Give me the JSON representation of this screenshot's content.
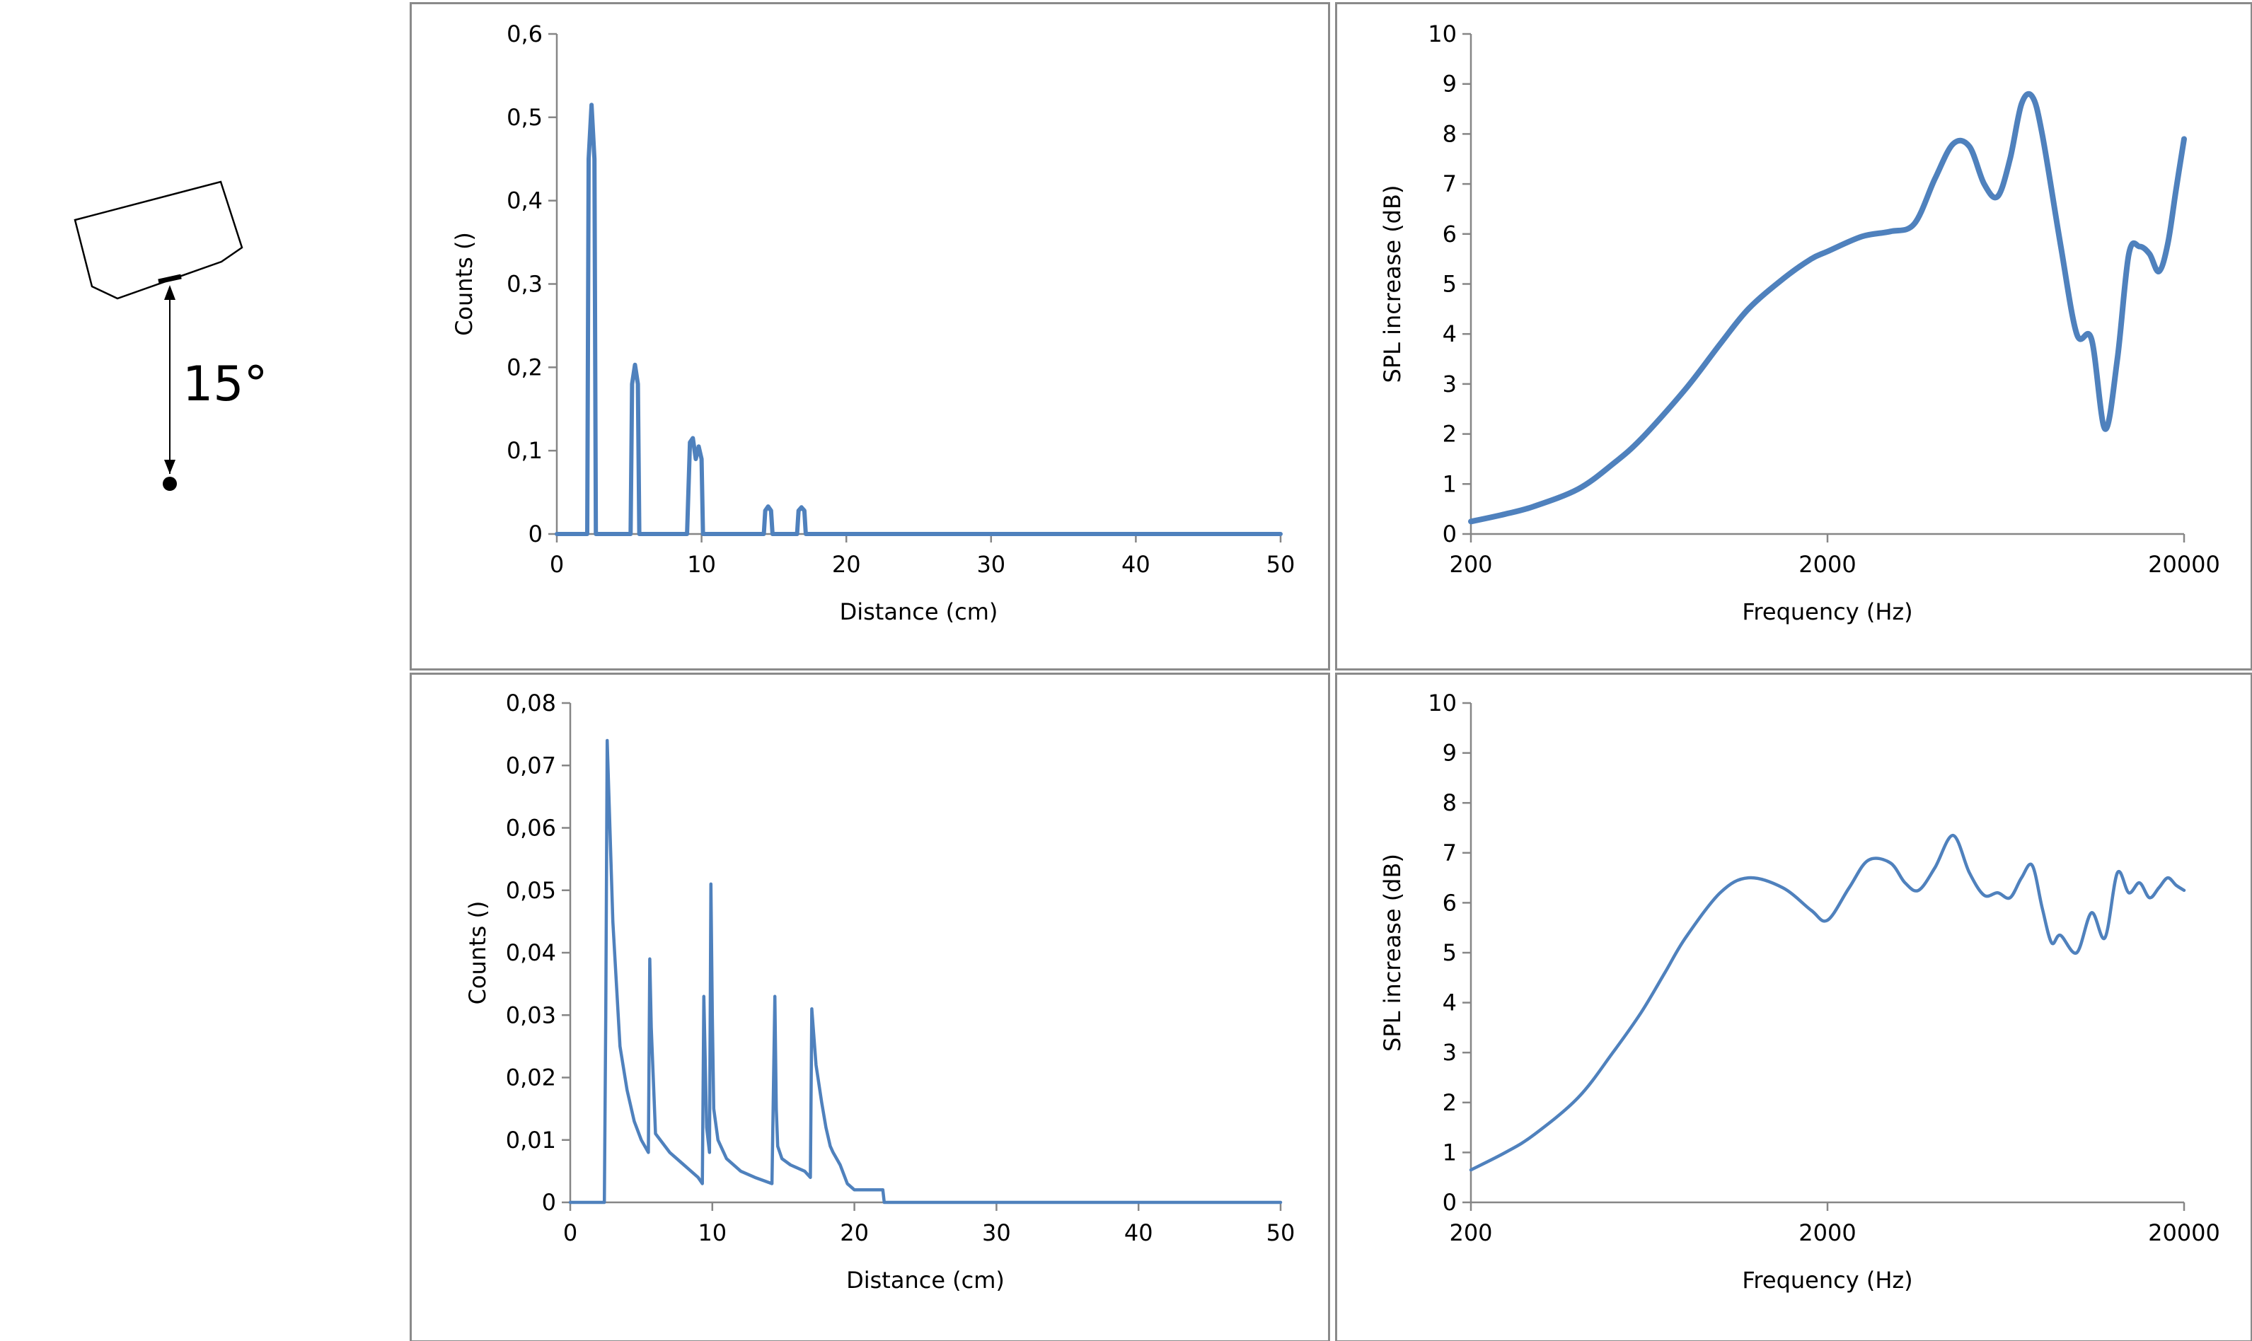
{
  "diagram": {
    "angle_label": "15°"
  },
  "colors": {
    "series": "#4f81bd",
    "panel_border": "#8a8a8a",
    "axis": "#868686"
  },
  "chart_data": [
    {
      "type": "line",
      "xlabel": "Distance (cm)",
      "ylabel": "Counts ()",
      "xlim": [
        0,
        50
      ],
      "ylim": [
        0,
        0.6
      ],
      "xticks": [
        0,
        10,
        20,
        30,
        40,
        50
      ],
      "xtick_labels": [
        "0",
        "10",
        "20",
        "30",
        "40",
        "50"
      ],
      "yticks": [
        0,
        0.1,
        0.2,
        0.3,
        0.4,
        0.5,
        0.6
      ],
      "ytick_labels": [
        "0",
        "0,1",
        "0,2",
        "0,3",
        "0,4",
        "0,5",
        "0,6"
      ],
      "grid": false,
      "series": [
        {
          "x": [
            0,
            2.1,
            2.2,
            2.4,
            2.6,
            2.7,
            5.1,
            5.2,
            5.4,
            5.6,
            5.7,
            9.0,
            9.2,
            9.4,
            9.6,
            9.8,
            10.0,
            10.1,
            14.3,
            14.4,
            14.6,
            14.8,
            14.9,
            16.6,
            16.7,
            16.9,
            17.1,
            17.2,
            50
          ],
          "y": [
            0,
            0,
            0.45,
            0.515,
            0.45,
            0,
            0,
            0.18,
            0.203,
            0.18,
            0,
            0,
            0.11,
            0.115,
            0.09,
            0.105,
            0.09,
            0,
            0,
            0.028,
            0.033,
            0.028,
            0,
            0,
            0.028,
            0.032,
            0.028,
            0,
            0
          ]
        }
      ]
    },
    {
      "type": "line",
      "xlabel": "Frequency (Hz)",
      "ylabel": "SPL increase (dB)",
      "xscale": "log",
      "xlim": [
        200,
        20000
      ],
      "ylim": [
        0,
        10
      ],
      "xticks": [
        200,
        2000,
        20000
      ],
      "xtick_labels": [
        "200",
        "2000",
        "20000"
      ],
      "yticks": [
        0,
        1,
        2,
        3,
        4,
        5,
        6,
        7,
        8,
        9,
        10
      ],
      "ytick_labels": [
        "0",
        "1",
        "2",
        "3",
        "4",
        "5",
        "6",
        "7",
        "8",
        "9",
        "10"
      ],
      "grid": false,
      "series": [
        {
          "x": [
            200,
            250,
            300,
            400,
            500,
            600,
            800,
            1000,
            1200,
            1500,
            1800,
            2000,
            2500,
            3000,
            3500,
            4000,
            4500,
            5000,
            5500,
            6000,
            6500,
            7000,
            7500,
            8000,
            9000,
            10000,
            11000,
            12000,
            13000,
            14000,
            15000,
            16000,
            17000,
            18000,
            19000,
            20000
          ],
          "y": [
            0.25,
            0.4,
            0.55,
            0.9,
            1.4,
            1.9,
            2.9,
            3.8,
            4.5,
            5.1,
            5.5,
            5.65,
            5.95,
            6.05,
            6.2,
            7.1,
            7.8,
            7.75,
            7.0,
            6.75,
            7.5,
            8.6,
            8.75,
            8.0,
            5.8,
            4.0,
            3.9,
            2.1,
            3.5,
            5.6,
            5.75,
            5.6,
            5.25,
            5.8,
            6.9,
            7.9
          ]
        }
      ]
    },
    {
      "type": "line",
      "xlabel": "Distance (cm)",
      "ylabel": "Counts ()",
      "xlim": [
        0,
        50
      ],
      "ylim": [
        0,
        0.08
      ],
      "xticks": [
        0,
        10,
        20,
        30,
        40,
        50
      ],
      "xtick_labels": [
        "0",
        "10",
        "20",
        "30",
        "40",
        "50"
      ],
      "yticks": [
        0,
        0.01,
        0.02,
        0.03,
        0.04,
        0.05,
        0.06,
        0.07,
        0.08
      ],
      "ytick_labels": [
        "0",
        "0,01",
        "0,02",
        "0,03",
        "0,04",
        "0,05",
        "0,06",
        "0,07",
        "0,08"
      ],
      "grid": false,
      "series": [
        {
          "x": [
            0,
            2.4,
            2.5,
            2.6,
            3.0,
            3.5,
            4.0,
            4.5,
            5.0,
            5.5,
            5.6,
            5.7,
            6.0,
            7.0,
            8.0,
            9.0,
            9.3,
            9.4,
            9.6,
            9.8,
            9.9,
            10.0,
            10.1,
            10.4,
            11.0,
            12.0,
            13.0,
            14.2,
            14.4,
            14.5,
            14.6,
            14.9,
            15.5,
            16.5,
            16.9,
            17.0,
            17.1,
            17.3,
            17.7,
            18.0,
            18.3,
            18.5,
            19.0,
            19.5,
            20.0,
            21.0,
            22.0,
            22.1,
            50
          ],
          "y": [
            0,
            0,
            0.03,
            0.074,
            0.045,
            0.025,
            0.018,
            0.013,
            0.01,
            0.008,
            0.039,
            0.028,
            0.011,
            0.008,
            0.006,
            0.004,
            0.003,
            0.033,
            0.012,
            0.008,
            0.051,
            0.03,
            0.015,
            0.01,
            0.007,
            0.005,
            0.004,
            0.003,
            0.033,
            0.015,
            0.009,
            0.007,
            0.006,
            0.005,
            0.004,
            0.031,
            0.028,
            0.022,
            0.016,
            0.012,
            0.009,
            0.008,
            0.006,
            0.003,
            0.002,
            0.002,
            0.002,
            0,
            0
          ]
        }
      ]
    },
    {
      "type": "line",
      "xlabel": "Frequency (Hz)",
      "ylabel": "SPL increase (dB)",
      "xscale": "log",
      "xlim": [
        200,
        20000
      ],
      "ylim": [
        0,
        10
      ],
      "xticks": [
        200,
        2000,
        20000
      ],
      "xtick_labels": [
        "200",
        "2000",
        "20000"
      ],
      "yticks": [
        0,
        1,
        2,
        3,
        4,
        5,
        6,
        7,
        8,
        9,
        10
      ],
      "ytick_labels": [
        "0",
        "1",
        "2",
        "3",
        "4",
        "5",
        "6",
        "7",
        "8",
        "9",
        "10"
      ],
      "grid": false,
      "series": [
        {
          "x": [
            200,
            250,
            300,
            400,
            500,
            600,
            700,
            800,
            1000,
            1200,
            1500,
            1800,
            2000,
            2300,
            2600,
            3000,
            3300,
            3600,
            4000,
            4500,
            5000,
            5500,
            6000,
            6500,
            7000,
            7500,
            8000,
            8500,
            9000,
            10000,
            11000,
            12000,
            13000,
            14000,
            15000,
            16000,
            17000,
            18000,
            19000,
            20000
          ],
          "y": [
            0.65,
            1.0,
            1.35,
            2.1,
            3.0,
            3.8,
            4.6,
            5.3,
            6.2,
            6.5,
            6.3,
            5.85,
            5.65,
            6.3,
            6.85,
            6.8,
            6.4,
            6.25,
            6.7,
            7.35,
            6.6,
            6.15,
            6.2,
            6.1,
            6.5,
            6.75,
            5.9,
            5.2,
            5.35,
            5.0,
            5.8,
            5.3,
            6.6,
            6.2,
            6.4,
            6.1,
            6.3,
            6.5,
            6.35,
            6.25
          ]
        }
      ]
    }
  ]
}
